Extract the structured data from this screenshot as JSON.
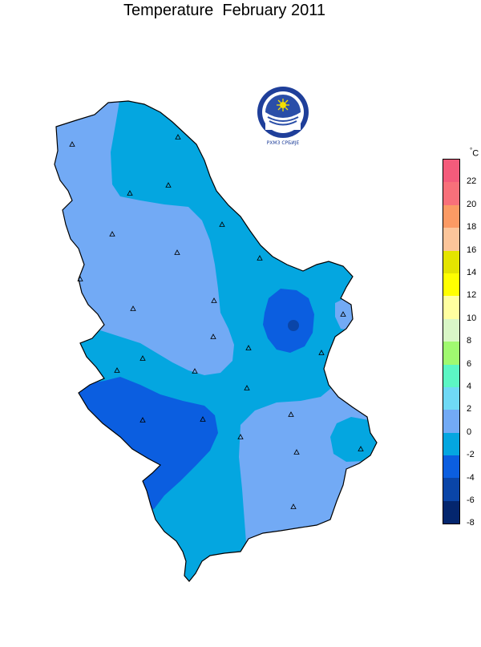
{
  "title": "Temperature  February 2011",
  "unit_degree": "°",
  "unit_letter": "C",
  "logo_text": "РХМЗ СРБИЈЕ",
  "legend": [
    {
      "label": "22",
      "color": "#f45b7b"
    },
    {
      "label": "20",
      "color": "#f8707a"
    },
    {
      "label": "18",
      "color": "#fb9a64"
    },
    {
      "label": "16",
      "color": "#fcc59a"
    },
    {
      "label": "14",
      "color": "#e4e400"
    },
    {
      "label": "12",
      "color": "#ffff00"
    },
    {
      "label": "10",
      "color": "#ffffa0"
    },
    {
      "label": "8",
      "color": "#d9f7c7"
    },
    {
      "label": "6",
      "color": "#a0f970"
    },
    {
      "label": "4",
      "color": "#5cf6c4"
    },
    {
      "label": "2",
      "color": "#6fd9f5"
    },
    {
      "label": "0",
      "color": "#72aaf5"
    },
    {
      "label": "-2",
      "color": "#04a6e0"
    },
    {
      "label": "-4",
      "color": "#0b5ee0"
    },
    {
      "label": "-6",
      "color": "#0a45a8"
    },
    {
      "label": "-8",
      "color": "#04266e"
    }
  ],
  "zone_colors": {
    "light": "#72aaf5",
    "mid": "#04a6e0",
    "dark": "#0b5ee0",
    "darker": "#0a45a8"
  }
}
